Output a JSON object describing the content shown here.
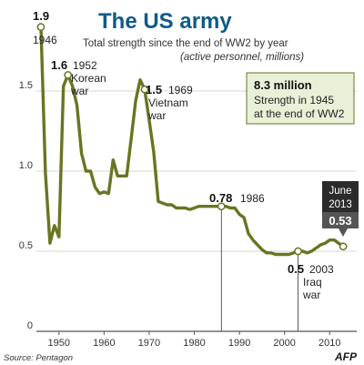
{
  "chart_data": {
    "type": "line",
    "title": "The US army",
    "subtitle": "Total strength since the end of WW2 by year",
    "subtitle_units": "(active personnel, millions)",
    "x_ticks": [
      "1950",
      "1960",
      "1970",
      "1980",
      "1990",
      "2000",
      "2010"
    ],
    "y_ticks": [
      "0",
      "0.5",
      "1.0",
      "1.5"
    ],
    "xlim": [
      1945,
      2016
    ],
    "ylim": [
      0,
      2.0
    ],
    "grid": "horizontal",
    "series": [
      {
        "color": "#6b7422",
        "x": [
          1946,
          1947,
          1948,
          1949,
          1950,
          1951,
          1952,
          1953,
          1954,
          1955,
          1956,
          1957,
          1958,
          1959,
          1960,
          1961,
          1962,
          1963,
          1964,
          1965,
          1966,
          1967,
          1968,
          1969,
          1970,
          1971,
          1972,
          1973,
          1974,
          1975,
          1976,
          1977,
          1978,
          1979,
          1980,
          1981,
          1982,
          1983,
          1984,
          1985,
          1986,
          1987,
          1988,
          1989,
          1990,
          1991,
          1992,
          1993,
          1994,
          1995,
          1996,
          1997,
          1998,
          1999,
          2000,
          2001,
          2002,
          2003,
          2004,
          2005,
          2006,
          2007,
          2008,
          2009,
          2010,
          2011,
          2012,
          2013
        ],
        "y": [
          1.9,
          0.99,
          0.55,
          0.66,
          0.59,
          1.53,
          1.6,
          1.53,
          1.41,
          1.11,
          1.0,
          1.0,
          0.9,
          0.86,
          0.87,
          0.86,
          1.07,
          0.97,
          0.97,
          0.97,
          1.2,
          1.44,
          1.57,
          1.51,
          1.32,
          1.12,
          0.81,
          0.8,
          0.79,
          0.79,
          0.77,
          0.77,
          0.77,
          0.76,
          0.77,
          0.78,
          0.78,
          0.78,
          0.78,
          0.78,
          0.78,
          0.78,
          0.77,
          0.77,
          0.73,
          0.71,
          0.61,
          0.57,
          0.54,
          0.51,
          0.49,
          0.49,
          0.48,
          0.48,
          0.48,
          0.48,
          0.49,
          0.5,
          0.5,
          0.49,
          0.5,
          0.52,
          0.54,
          0.55,
          0.57,
          0.57,
          0.55,
          0.53
        ]
      }
    ],
    "annotations": [
      {
        "value": "1.9",
        "text": "1946"
      },
      {
        "value": "1.6",
        "text": "1952",
        "text2": "Korean",
        "text3": "war"
      },
      {
        "value": "1.5",
        "text": "1969",
        "text2": "Vietnam",
        "text3": "war"
      },
      {
        "value": "0.78",
        "text": "1986"
      },
      {
        "value": "0.5",
        "text": "2003",
        "text2": "Iraq",
        "text3": "war"
      }
    ],
    "callout": {
      "line1": "June",
      "line2": "2013",
      "value": "0.53"
    },
    "info_box": {
      "value": "8.3 million",
      "line1": "Strength in 1945",
      "line2": "at the end of WW2"
    }
  },
  "source": "Source: Pentagon",
  "logo": "AFP",
  "colors": {
    "line": "#6b7422",
    "title": "#0f5b86",
    "callout_bg": "#2b2b2b",
    "callout_value_bg": "#555555",
    "info_box_bg": "#e8f0d8",
    "info_box_border": "#6b7422"
  }
}
